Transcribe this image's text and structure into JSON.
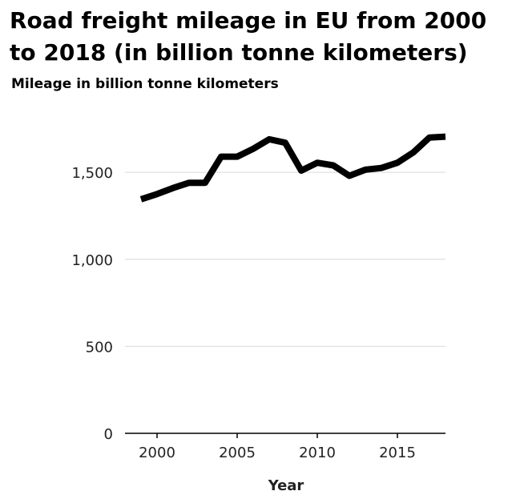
{
  "chart_data": {
    "type": "line",
    "title": "Road freight mileage in EU from 2000 to 2018 (in billion tonne kilometers)",
    "ylabel": "Mileage in billion tonne kilometers",
    "xlabel": "Year",
    "x": [
      1999,
      2000,
      2001,
      2002,
      2003,
      2004,
      2005,
      2006,
      2007,
      2008,
      2009,
      2010,
      2011,
      2012,
      2013,
      2014,
      2015,
      2016,
      2017,
      2018
    ],
    "series": [
      {
        "values": [
          1345,
          1375,
          1410,
          1440,
          1440,
          1590,
          1590,
          1635,
          1690,
          1670,
          1510,
          1555,
          1540,
          1480,
          1515,
          1525,
          1555,
          1615,
          1700,
          1705
        ]
      }
    ],
    "xlim": [
      1998,
      2018
    ],
    "ylim": [
      0,
      1800
    ],
    "xticks": [
      2000,
      2005,
      2010,
      2015
    ],
    "xtick_labels": [
      "2000",
      "2005",
      "2010",
      "2015"
    ],
    "yticks": [
      0,
      500,
      1000,
      1500
    ],
    "ytick_labels": [
      "0",
      "500",
      "1,000",
      "1,500"
    ],
    "grid": "horizontal",
    "line_color": "#000000",
    "grid_color": "#d9d9d9"
  }
}
